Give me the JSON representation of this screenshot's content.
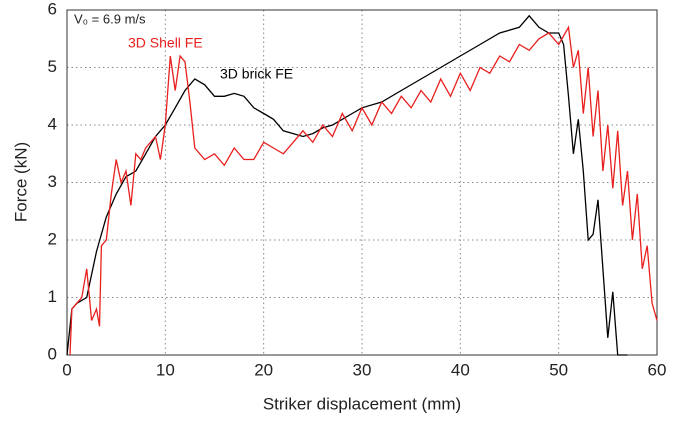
{
  "chart_data": {
    "type": "line",
    "annotation": "V₀ = 6.9 m/s",
    "xlabel": "Striker displacement (mm)",
    "ylabel": "Force (kN)",
    "xlim": [
      0,
      60
    ],
    "xticks": [
      0,
      10,
      20,
      30,
      40,
      50,
      60
    ],
    "ylim": [
      0,
      6
    ],
    "yticks": [
      0,
      1,
      2,
      3,
      4,
      5,
      6
    ],
    "grid": true,
    "series": [
      {
        "name": "3D brick FE",
        "color": "#000000",
        "x": [
          0,
          0.5,
          1,
          2,
          3,
          4,
          5,
          6,
          7,
          8,
          9,
          10,
          11,
          12,
          13,
          14,
          15,
          16,
          17,
          18,
          19,
          20,
          21,
          22,
          23,
          24,
          25,
          26,
          27,
          28,
          29,
          30,
          32,
          34,
          36,
          38,
          40,
          42,
          44,
          46,
          47,
          48,
          49,
          50,
          50.5,
          51,
          51.5,
          52,
          52.5,
          53,
          53.5,
          54,
          54.5,
          55,
          55.5,
          56,
          57
        ],
        "values": [
          0,
          0.8,
          0.9,
          1.0,
          1.8,
          2.4,
          2.8,
          3.1,
          3.2,
          3.5,
          3.8,
          4.0,
          4.3,
          4.6,
          4.8,
          4.7,
          4.5,
          4.5,
          4.55,
          4.5,
          4.3,
          4.2,
          4.1,
          3.9,
          3.85,
          3.8,
          3.85,
          3.95,
          4.0,
          4.1,
          4.2,
          4.3,
          4.4,
          4.6,
          4.8,
          5.0,
          5.2,
          5.4,
          5.6,
          5.7,
          5.9,
          5.7,
          5.6,
          5.6,
          5.4,
          4.5,
          3.5,
          4.1,
          3.2,
          2.0,
          2.1,
          2.7,
          1.5,
          0.3,
          1.1,
          0,
          0
        ]
      },
      {
        "name": "3D Shell FE",
        "color": "#e8201e",
        "x": [
          0.3,
          0.5,
          1,
          1.5,
          2,
          2.5,
          3,
          3.3,
          3.5,
          4,
          4.5,
          5,
          5.5,
          6,
          6.5,
          7,
          7.5,
          8,
          9,
          9.5,
          10,
          10.5,
          11,
          11.5,
          12,
          12.5,
          13,
          14,
          15,
          16,
          17,
          18,
          19,
          20,
          21,
          22,
          23,
          24,
          25,
          26,
          27,
          28,
          29,
          30,
          31,
          32,
          33,
          34,
          35,
          36,
          37,
          38,
          39,
          40,
          41,
          42,
          43,
          44,
          45,
          46,
          47,
          48,
          49,
          50,
          51,
          51.5,
          52,
          52.5,
          53,
          53.5,
          54,
          54.5,
          55,
          55.5,
          56,
          56.5,
          57,
          57.5,
          58,
          58.5,
          59,
          59.5,
          60
        ],
        "values": [
          0,
          0.8,
          0.9,
          1.0,
          1.5,
          0.6,
          0.8,
          0.5,
          1.9,
          2.0,
          2.8,
          3.4,
          3.0,
          3.2,
          2.6,
          3.5,
          3.4,
          3.6,
          3.8,
          3.4,
          4.0,
          5.2,
          4.6,
          5.2,
          5.1,
          4.4,
          3.6,
          3.4,
          3.5,
          3.3,
          3.6,
          3.4,
          3.4,
          3.7,
          3.6,
          3.5,
          3.7,
          3.9,
          3.7,
          4.0,
          3.8,
          4.2,
          3.9,
          4.3,
          4.0,
          4.4,
          4.2,
          4.5,
          4.3,
          4.6,
          4.4,
          4.8,
          4.5,
          4.9,
          4.6,
          5.0,
          4.9,
          5.2,
          5.1,
          5.4,
          5.3,
          5.5,
          5.6,
          5.4,
          5.7,
          5.0,
          5.3,
          4.2,
          5.0,
          3.8,
          4.6,
          3.2,
          4.0,
          2.9,
          3.9,
          2.6,
          3.2,
          2.0,
          2.8,
          1.5,
          1.9,
          0.9,
          0.6
        ]
      }
    ]
  }
}
